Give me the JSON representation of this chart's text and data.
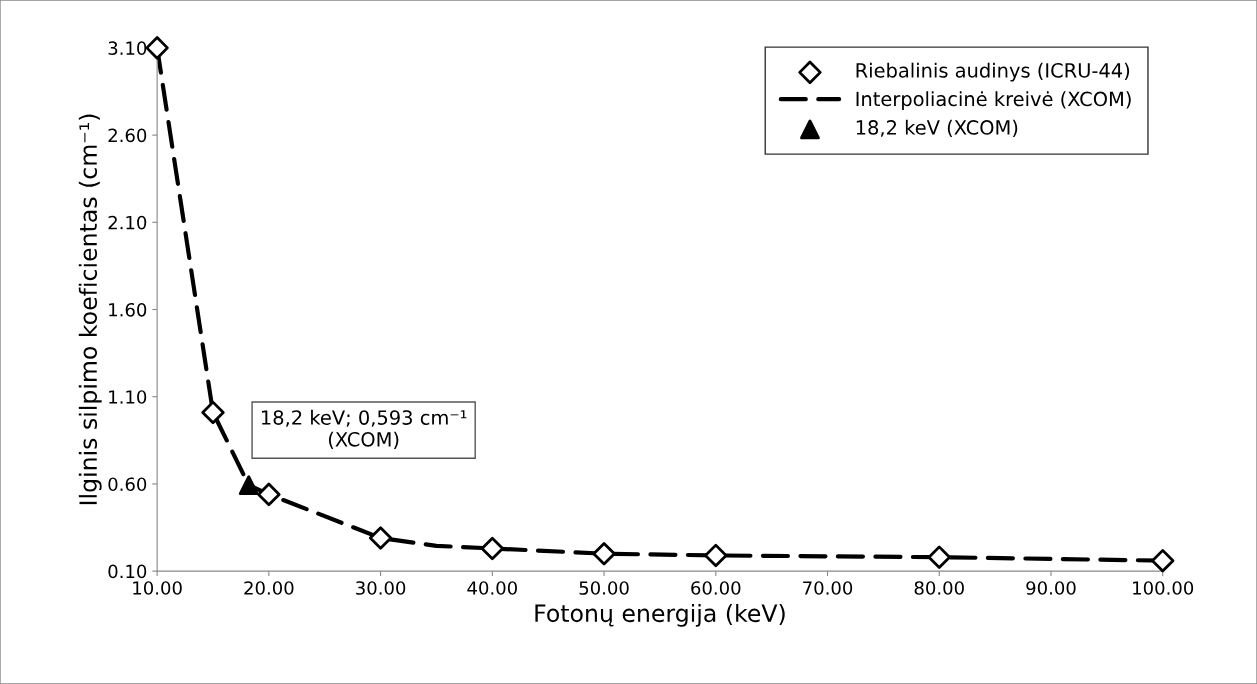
{
  "chart_data": {
    "type": "scatter",
    "xlabel": "Fotonų energija (keV)",
    "ylabel": "Ilginis silpimo koeficientas (cm⁻¹)",
    "xlim": [
      10,
      100
    ],
    "ylim": [
      0.1,
      3.1
    ],
    "xticks": [
      {
        "value": 10,
        "label": "10.00"
      },
      {
        "value": 20,
        "label": "20.00"
      },
      {
        "value": 30,
        "label": "30.00"
      },
      {
        "value": 40,
        "label": "40.00"
      },
      {
        "value": 50,
        "label": "50.00"
      },
      {
        "value": 60,
        "label": "60.00"
      },
      {
        "value": 70,
        "label": "70.00"
      },
      {
        "value": 80,
        "label": "80.00"
      },
      {
        "value": 90,
        "label": "90.00"
      },
      {
        "value": 100,
        "label": "100.00"
      }
    ],
    "yticks": [
      {
        "value": 0.1,
        "label": "0.10"
      },
      {
        "value": 0.6,
        "label": "0.60"
      },
      {
        "value": 1.1,
        "label": "1.10"
      },
      {
        "value": 1.6,
        "label": "1.60"
      },
      {
        "value": 2.1,
        "label": "2.10"
      },
      {
        "value": 2.6,
        "label": "2.60"
      },
      {
        "value": 3.1,
        "label": "3.10"
      }
    ],
    "grid": false,
    "legend": "top right",
    "series": [
      {
        "name": "Riebalinis audinys (ICRU-44)",
        "marker": "diamond",
        "color": "#000000",
        "x": [
          10,
          15,
          20,
          30,
          40,
          50,
          60,
          80,
          100
        ],
        "values": [
          3.1,
          1.01,
          0.54,
          0.29,
          0.23,
          0.2,
          0.19,
          0.18,
          0.16
        ]
      },
      {
        "name": "Interpoliacinė kreivė (XCOM)",
        "type": "line",
        "line_style": "dashed",
        "color": "#000000",
        "x": [
          10,
          15,
          18.2,
          20,
          30,
          35,
          40,
          50,
          60,
          80,
          100
        ],
        "values": [
          3.1,
          1.01,
          0.593,
          0.54,
          0.29,
          0.245,
          0.23,
          0.2,
          0.19,
          0.18,
          0.16
        ]
      },
      {
        "name": "18,2 keV (XCOM)",
        "marker": "triangle",
        "color": "#000000",
        "x": [
          18.2
        ],
        "values": [
          0.593
        ]
      }
    ],
    "annotations": [
      {
        "text": "18,2 keV; 0,593 cm⁻¹\n(XCOM)",
        "x": 18.2,
        "y": 0.593
      }
    ]
  }
}
